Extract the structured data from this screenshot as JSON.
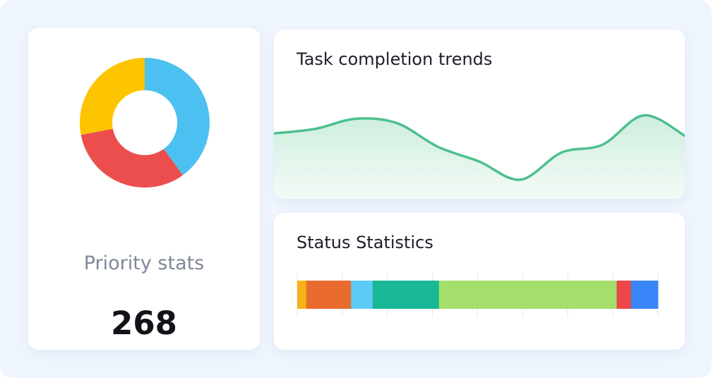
{
  "priority": {
    "label": "Priority stats",
    "total": "268"
  },
  "trend": {
    "title": "Task completion trends"
  },
  "status": {
    "title": "Status Statistics"
  },
  "colors": {
    "background": "#eef5fd",
    "line": "#4cc08e",
    "area_top": "#cdeedd",
    "area_bottom": "#f4fbf7"
  },
  "chart_data": [
    {
      "type": "pie",
      "variant": "donut",
      "slices": [
        {
          "value": 40,
          "color": "#4cc0f1"
        },
        {
          "value": 32,
          "color": "#ec4e4e"
        },
        {
          "value": 28,
          "color": "#fdc500"
        }
      ]
    },
    {
      "type": "area",
      "values": [
        0.58,
        0.62,
        0.71,
        0.67,
        0.46,
        0.33,
        0.17,
        0.41,
        0.48,
        0.74,
        0.56
      ],
      "ylim": [
        0,
        1
      ],
      "grid": false
    },
    {
      "type": "bar",
      "orientation": "horizontal",
      "stacked": true,
      "grid": true,
      "segments": [
        {
          "value": 2.5,
          "color": "#f7b218"
        },
        {
          "value": 12.5,
          "color": "#e96c2e"
        },
        {
          "value": 6,
          "color": "#5dcaf8"
        },
        {
          "value": 18.5,
          "color": "#18b896"
        },
        {
          "value": 49.5,
          "color": "#a5df6b"
        },
        {
          "value": 4,
          "color": "#ec4646"
        },
        {
          "value": 7.5,
          "color": "#3a86f8"
        }
      ]
    }
  ]
}
